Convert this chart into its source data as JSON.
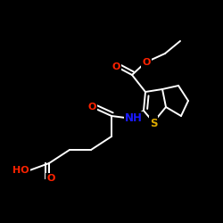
{
  "background_color": "#000000",
  "bond_color": "#ffffff",
  "atom_colors": {
    "O": "#ff2200",
    "N": "#1a1aff",
    "S": "#ddaa00",
    "C": "#ffffff"
  },
  "lw": 1.4,
  "fontsize": 8.5
}
